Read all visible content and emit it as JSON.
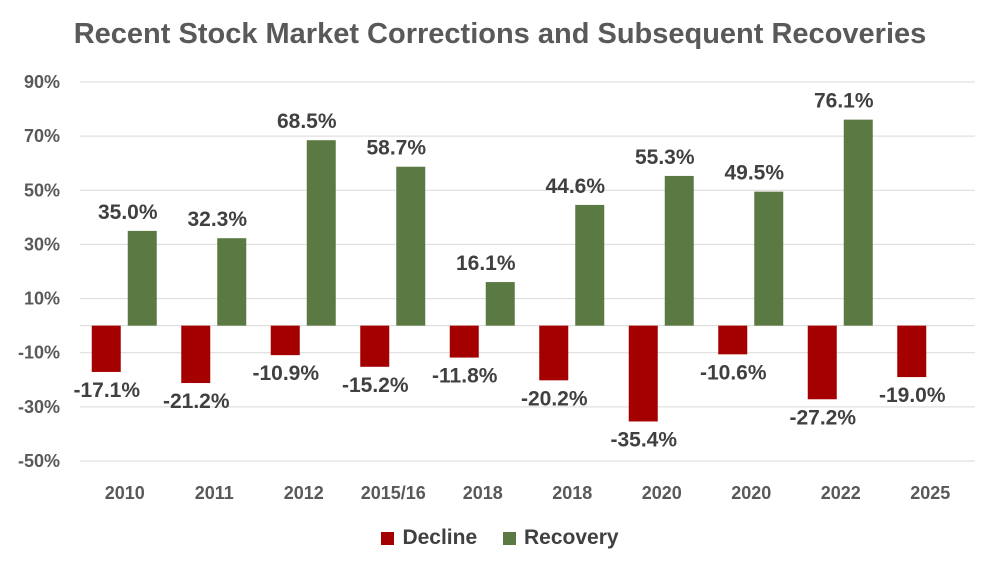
{
  "chart_data": {
    "type": "bar",
    "title": "Recent Stock Market Corrections and Subsequent Recoveries",
    "categories": [
      "2010",
      "2011",
      "2012",
      "2015/16",
      "2018",
      "2018",
      "2020",
      "2020",
      "2022",
      "2025"
    ],
    "series": [
      {
        "name": "Decline",
        "color": "#a50000",
        "values": [
          -17.1,
          -21.2,
          -10.9,
          -15.2,
          -11.8,
          -20.2,
          -35.4,
          -10.6,
          -27.2,
          -19.0
        ],
        "labels": [
          "-17.1%",
          "-21.2%",
          "-10.9%",
          "-15.2%",
          "-11.8%",
          "-20.2%",
          "-35.4%",
          "-10.6%",
          "-27.2%",
          "-19.0%"
        ]
      },
      {
        "name": "Recovery",
        "color": "#5b7a43",
        "values": [
          35.0,
          32.3,
          68.5,
          58.7,
          16.1,
          44.6,
          55.3,
          49.5,
          76.1,
          null
        ],
        "labels": [
          "35.0%",
          "32.3%",
          "68.5%",
          "58.7%",
          "16.1%",
          "44.6%",
          "55.3%",
          "49.5%",
          "76.1%",
          null
        ]
      }
    ],
    "ylim": [
      -50,
      90
    ],
    "yticks": [
      90,
      70,
      50,
      30,
      10,
      -10,
      -30,
      -50
    ],
    "ytick_labels": [
      "90%",
      "70%",
      "50%",
      "30%",
      "10%",
      "-10%",
      "-30%",
      "-50%"
    ],
    "xlabel": "",
    "ylabel": "",
    "grid": true,
    "legend": {
      "position": "bottom",
      "entries": [
        "Decline",
        "Recovery"
      ]
    }
  }
}
